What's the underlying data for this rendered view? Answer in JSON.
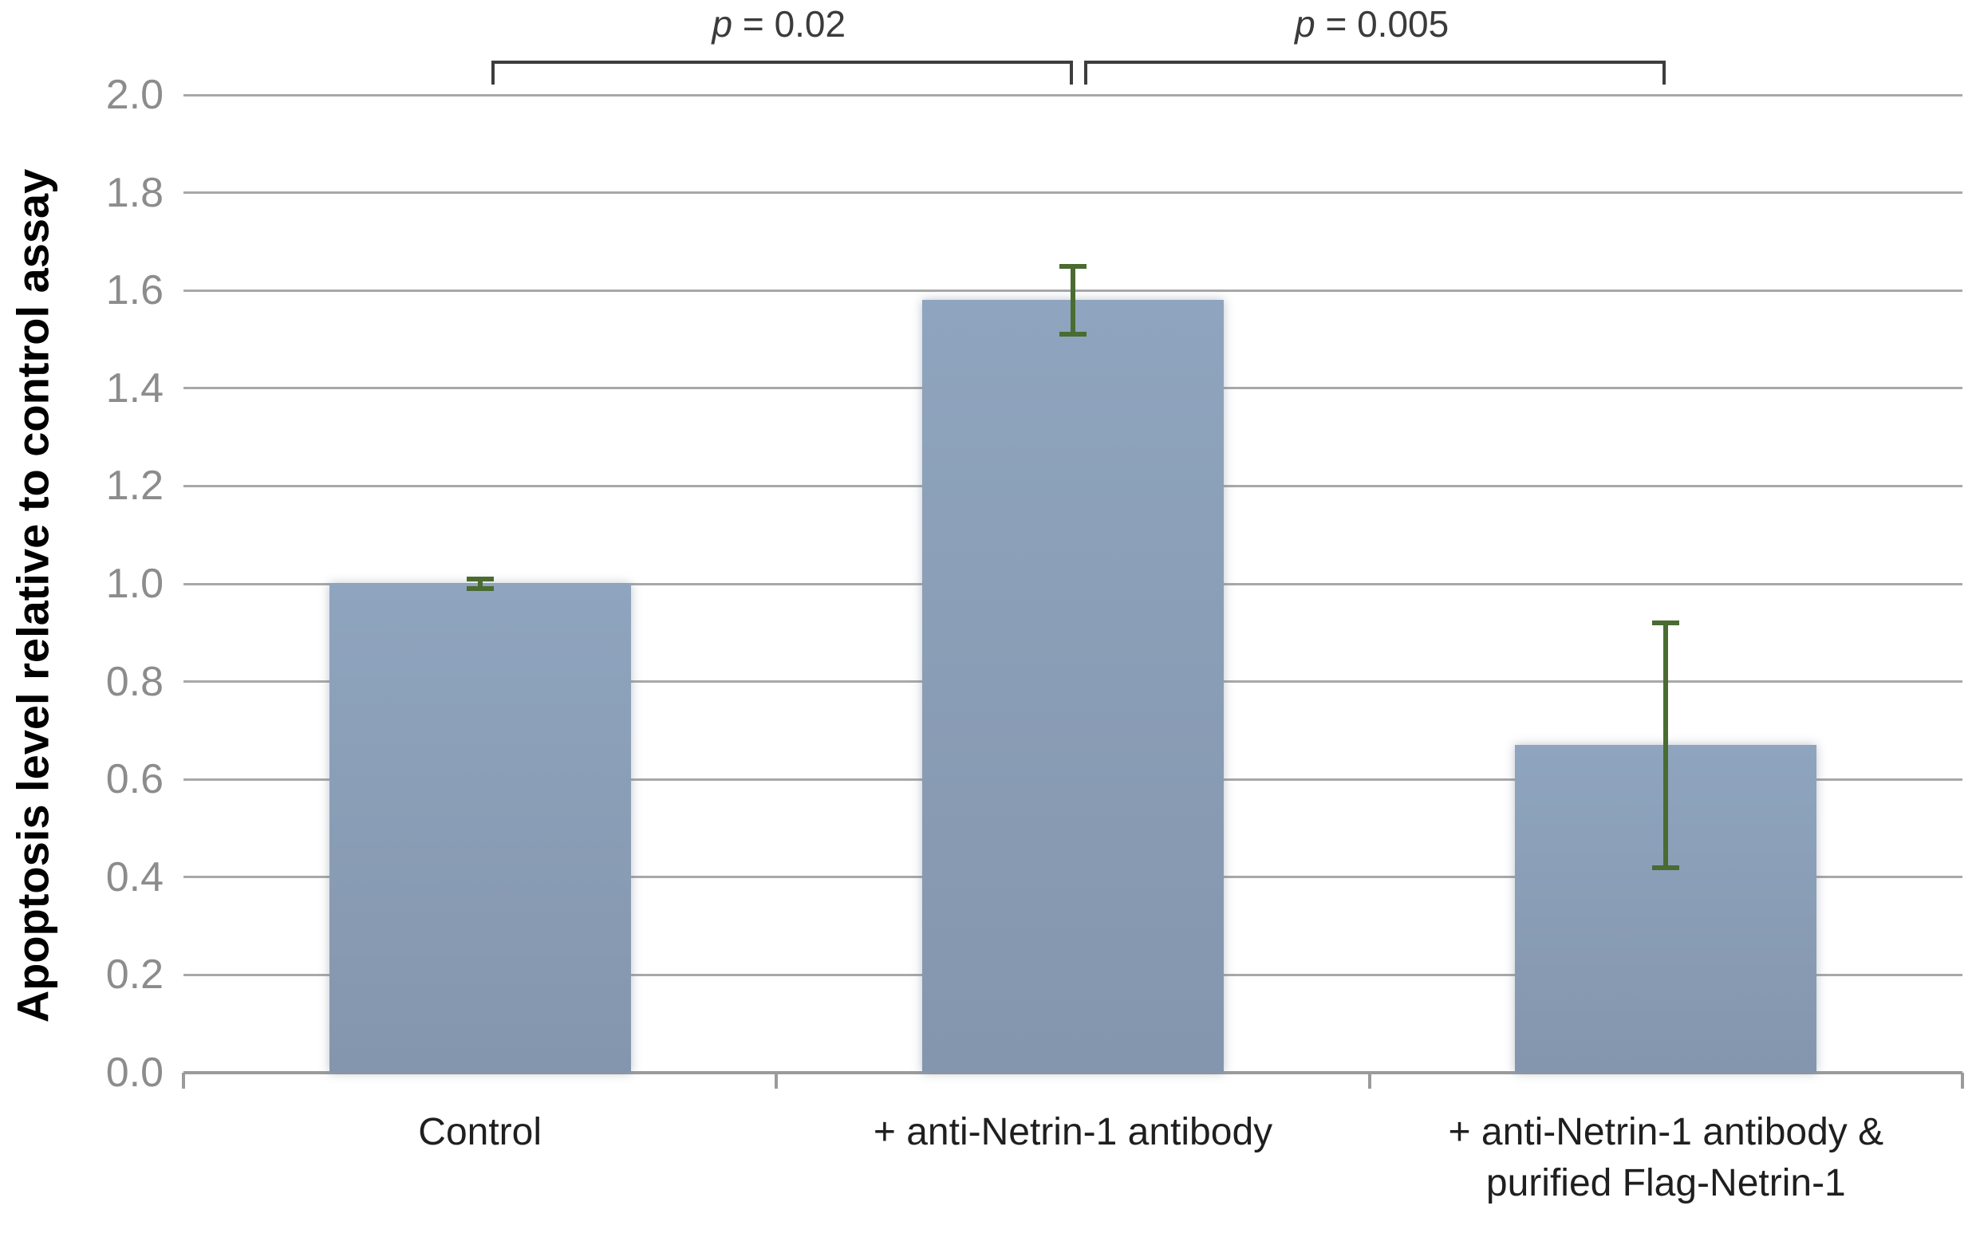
{
  "chart_data": {
    "type": "bar",
    "title": "",
    "ylabel": "Apoptosis level relative to control assay",
    "xlabel": "",
    "categories": [
      "Control",
      "+ anti-Netrin-1 antibody",
      "+ anti-Netrin-1 antibody &\npurified Flag-Netrin-1"
    ],
    "values": [
      1.0,
      1.58,
      0.67
    ],
    "error_bars": [
      0.01,
      0.07,
      0.25
    ],
    "ylim": [
      0.0,
      2.0
    ],
    "ytick_step": 0.2,
    "ytick_labels_top_to_bottom": [
      "2.0",
      "1.8",
      "1.6",
      "1.4",
      "1.2",
      "1.0",
      "0.8",
      "0.6",
      "0.4",
      "0.2",
      "0.0"
    ],
    "grid": true,
    "legend": "none",
    "annotations": [
      {
        "label": "p = 0.02",
        "from_bar": 0,
        "to_bar": 1
      },
      {
        "label": "p = 0.005",
        "from_bar": 1,
        "to_bar": 2
      }
    ],
    "colors": {
      "bar_top": "#8FA4BE",
      "bar_bottom": "#8496AD",
      "error_bar": "#4A6B31",
      "gridline": "#A8A8A8",
      "axis_line": "#9B9B9B",
      "tick_label": "#8C8C8C",
      "category_label": "#1F1F1F",
      "bracket": "#3D3D3D",
      "p_label": "#3B3B3B"
    }
  }
}
